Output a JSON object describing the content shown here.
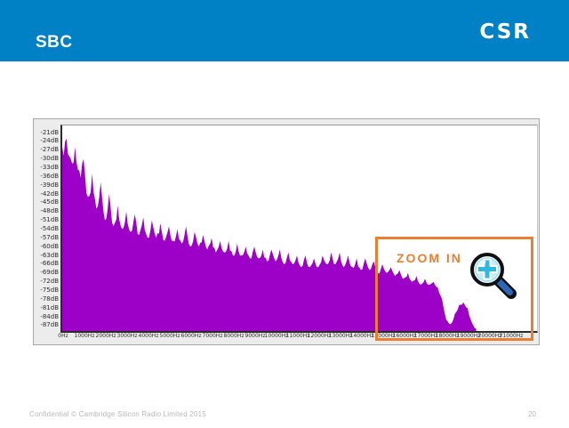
{
  "header": {
    "title": "SBC",
    "logo": "CSR",
    "colors": {
      "bar": "#0080C5",
      "text": "#FFFFFF"
    }
  },
  "zoom_overlay": {
    "label": "ZOOM IN",
    "accent_color": "#ED7D31",
    "icon": "magnifier-plus-icon"
  },
  "footer": {
    "confidential": "Confidential © Cambridge Silicon Radio Limited 2015",
    "page_number": "20"
  },
  "chart_data": {
    "type": "area",
    "title": "",
    "xlabel": "",
    "ylabel": "",
    "grid": false,
    "legend": false,
    "x_ticks": [
      "0Hz",
      "1000Hz",
      "2000Hz",
      "3000Hz",
      "4000Hz",
      "5000Hz",
      "6000Hz",
      "7000Hz",
      "8000Hz",
      "9000Hz",
      "10000Hz",
      "11000Hz",
      "12000Hz",
      "13000Hz",
      "14000Hz",
      "15000Hz",
      "16000Hz",
      "17000Hz",
      "18000Hz",
      "19000Hz",
      "20000Hz",
      "21000Hz"
    ],
    "y_ticks": [
      "-21dB",
      "-24dB",
      "-27dB",
      "-30dB",
      "-33dB",
      "-36dB",
      "-39dB",
      "-42dB",
      "-45dB",
      "-48dB",
      "-51dB",
      "-54dB",
      "-57dB",
      "-60dB",
      "-63dB",
      "-66dB",
      "-69dB",
      "-72dB",
      "-75dB",
      "-78dB",
      "-81dB",
      "-84dB",
      "-87dB"
    ],
    "x_range_hz": [
      0,
      22200
    ],
    "y_range_db": [
      -87,
      -21
    ],
    "colors": {
      "fill": "#9D00C6",
      "plot_bg": "#FFFFFF",
      "panel_bg": "#ECECEC",
      "axis": "#2B2B2B"
    },
    "series": [
      {
        "name": "spectrum",
        "freq_start_hz": 0,
        "freq_step_hz": 200,
        "db": [
          -26,
          -23,
          -30,
          -26,
          -34,
          -30,
          -43,
          -35,
          -47,
          -38,
          -51,
          -42,
          -53,
          -46,
          -54,
          -48,
          -55,
          -49,
          -56,
          -50,
          -57,
          -51,
          -57,
          -52,
          -58,
          -53,
          -58,
          -54,
          -59,
          -53,
          -60,
          -55,
          -60,
          -56,
          -61,
          -57,
          -62,
          -58,
          -62,
          -58,
          -63,
          -59,
          -63,
          -60,
          -64,
          -60,
          -64,
          -61,
          -65,
          -61,
          -65,
          -61,
          -66,
          -62,
          -66,
          -63,
          -67,
          -63,
          -67,
          -64,
          -67,
          -63,
          -66,
          -62,
          -66,
          -62,
          -67,
          -63,
          -67,
          -64,
          -68,
          -64,
          -68,
          -65,
          -69,
          -66,
          -69,
          -67,
          -70,
          -68,
          -71,
          -69,
          -72,
          -70,
          -73,
          -71,
          -73,
          -72,
          -74,
          -78,
          -85,
          -86.5,
          -83,
          -80,
          -79,
          -81,
          -86,
          -88
        ]
      }
    ]
  }
}
